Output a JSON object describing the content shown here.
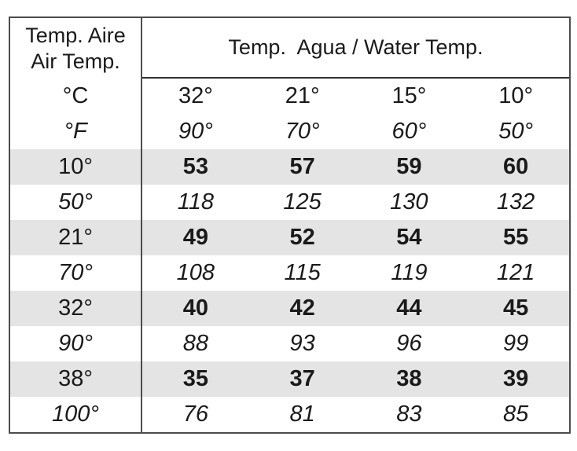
{
  "colors": {
    "background": "#ffffff",
    "row_shade": "#e4e4e4",
    "border": "#4d4d4d",
    "text": "#1a1a1a"
  },
  "table": {
    "air_header_line1": "Temp. Aire",
    "air_header_line2": "Air Temp.",
    "celsius_label": "°C",
    "fahrenheit_label": "°F",
    "water_header": "Temp.  Agua / Water Temp.",
    "c_cols": [
      "32°",
      "21°",
      "15°",
      "10°"
    ],
    "f_cols": [
      "90°",
      "70°",
      "60°",
      "50°"
    ],
    "rows": [
      {
        "label": "10°",
        "values": [
          "53",
          "57",
          "59",
          "60"
        ],
        "unit": "celsius"
      },
      {
        "label": "50°",
        "values": [
          "118",
          "125",
          "130",
          "132"
        ],
        "unit": "fahrenheit"
      },
      {
        "label": "21°",
        "values": [
          "49",
          "52",
          "54",
          "55"
        ],
        "unit": "celsius"
      },
      {
        "label": "70°",
        "values": [
          "108",
          "115",
          "119",
          "121"
        ],
        "unit": "fahrenheit"
      },
      {
        "label": "32°",
        "values": [
          "40",
          "42",
          "44",
          "45"
        ],
        "unit": "celsius"
      },
      {
        "label": "90°",
        "values": [
          "88",
          "93",
          "96",
          "99"
        ],
        "unit": "fahrenheit"
      },
      {
        "label": "38°",
        "values": [
          "35",
          "37",
          "38",
          "39"
        ],
        "unit": "celsius"
      },
      {
        "label": "100°",
        "values": [
          "76",
          "81",
          "83",
          "85"
        ],
        "unit": "fahrenheit"
      }
    ]
  },
  "chart_data": {
    "type": "table",
    "title": "Temp. Agua / Water Temp.",
    "row_header": "Temp. Aire / Air Temp.",
    "water_temp_columns_celsius": [
      32,
      21,
      15,
      10
    ],
    "water_temp_columns_fahrenheit": [
      90,
      70,
      60,
      50
    ],
    "rows": [
      {
        "air_temp": 10,
        "unit": "C",
        "values": [
          53,
          57,
          59,
          60
        ]
      },
      {
        "air_temp": 50,
        "unit": "F",
        "values": [
          118,
          125,
          130,
          132
        ]
      },
      {
        "air_temp": 21,
        "unit": "C",
        "values": [
          49,
          52,
          54,
          55
        ]
      },
      {
        "air_temp": 70,
        "unit": "F",
        "values": [
          108,
          115,
          119,
          121
        ]
      },
      {
        "air_temp": 32,
        "unit": "C",
        "values": [
          40,
          42,
          44,
          45
        ]
      },
      {
        "air_temp": 90,
        "unit": "F",
        "values": [
          88,
          93,
          96,
          99
        ]
      },
      {
        "air_temp": 38,
        "unit": "C",
        "values": [
          35,
          37,
          38,
          39
        ]
      },
      {
        "air_temp": 100,
        "unit": "F",
        "values": [
          76,
          81,
          83,
          85
        ]
      }
    ]
  }
}
